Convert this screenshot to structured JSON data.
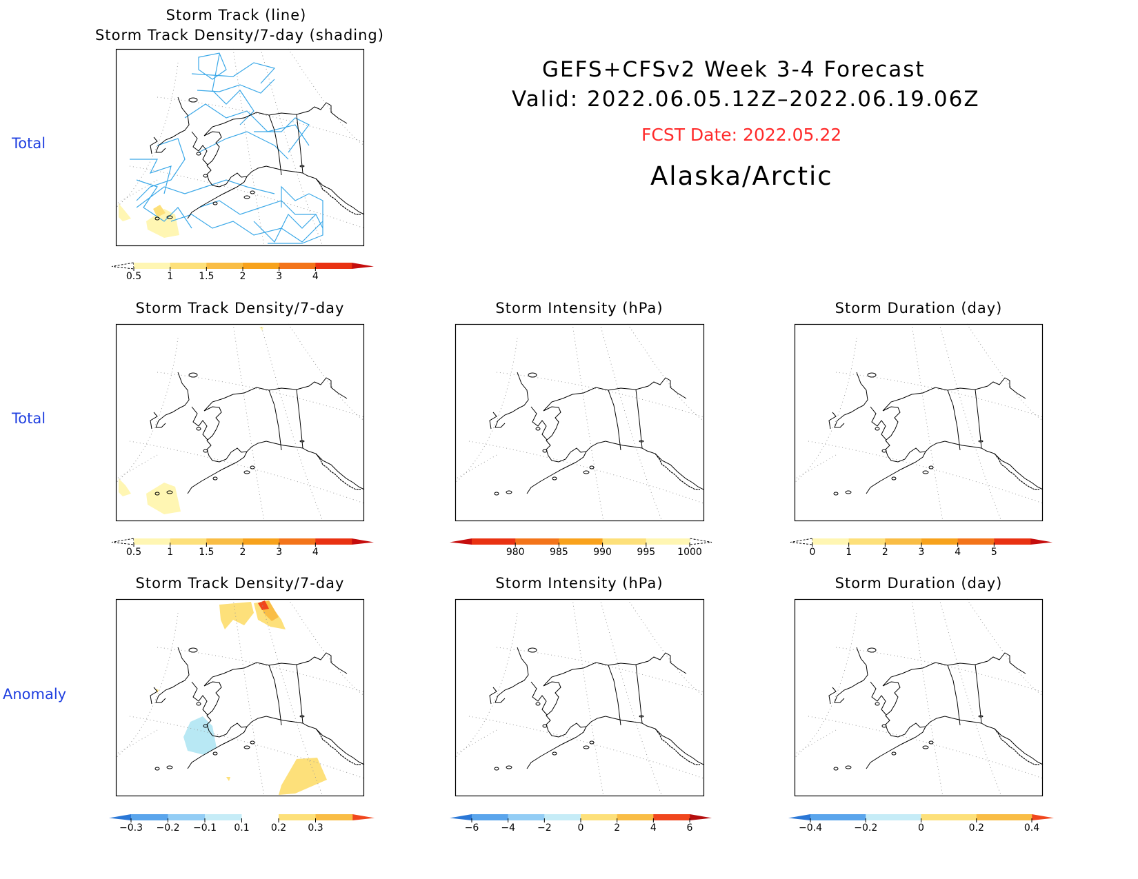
{
  "header": {
    "line1": "GEFS+CFSv2 Week 3-4 Forecast",
    "line2": "Valid: 2022.06.05.12Z–2022.06.19.06Z",
    "fcst": "FCST Date: 2022.05.22",
    "region": "Alaska/Arctic"
  },
  "row_labels": {
    "row1": "Total",
    "row2": "Total",
    "row3": "Anomaly"
  },
  "panels": {
    "p1": {
      "title_line1": "Storm Track (line)",
      "title_line2": "Storm Track Density/7-day (shading)"
    },
    "p2": {
      "title": "Storm Track Density/7-day"
    },
    "p3": {
      "title": "Storm Intensity (hPa)"
    },
    "p4": {
      "title": "Storm Duration (day)"
    },
    "p5": {
      "title": "Storm Track Density/7-day"
    },
    "p6": {
      "title": "Storm Intensity (hPa)"
    },
    "p7": {
      "title": "Storm Duration (day)"
    }
  },
  "colorbars": {
    "density_total": {
      "ticks": [
        "0.5",
        "1",
        "1.5",
        "2",
        "3",
        "4"
      ],
      "colors": [
        "#fff6b3",
        "#fde07a",
        "#f9bd45",
        "#f7a21c",
        "#f3741a",
        "#e93212",
        "#c50d0d"
      ]
    },
    "intensity_total": {
      "ticks": [
        "980",
        "985",
        "990",
        "995",
        "1000"
      ],
      "colors": [
        "#c50d0d",
        "#e93212",
        "#f3741a",
        "#f9a21c",
        "#fde07a",
        "#fff6b3"
      ]
    },
    "duration_total": {
      "ticks": [
        "0",
        "1",
        "2",
        "3",
        "4",
        "5"
      ],
      "colors": [
        "#fff6b3",
        "#fde07a",
        "#f9bd45",
        "#f7a21c",
        "#f3741a",
        "#e93212",
        "#c50d0d"
      ]
    },
    "density_anom": {
      "ticks": [
        "−0.3",
        "−0.2",
        "−0.1",
        "0.1",
        "0.2",
        "0.3"
      ],
      "colors": [
        "#2a77d6",
        "#5aa5ec",
        "#93cdf5",
        "#c6ecf7",
        "#ffffff",
        "#fde07a",
        "#f9bd45",
        "#f0461d"
      ]
    },
    "intensity_anom": {
      "ticks": [
        "−6",
        "−4",
        "−2",
        "0",
        "2",
        "4",
        "6"
      ],
      "colors": [
        "#2a77d6",
        "#5aa5ec",
        "#93cdf5",
        "#c6ecf7",
        "#fde07a",
        "#f9bd45",
        "#f0461d",
        "#b50e0e"
      ]
    },
    "duration_anom": {
      "ticks": [
        "−0.4",
        "−0.2",
        "0",
        "0.2",
        "0.4"
      ],
      "colors": [
        "#2a77d6",
        "#5aa5ec",
        "#c6ecf7",
        "#fde07a",
        "#f9bd45",
        "#f0461d"
      ]
    }
  },
  "map_colors": {
    "track_line": "#3aa8e8",
    "coast": "#000000",
    "grid": "#9a9a9a"
  }
}
